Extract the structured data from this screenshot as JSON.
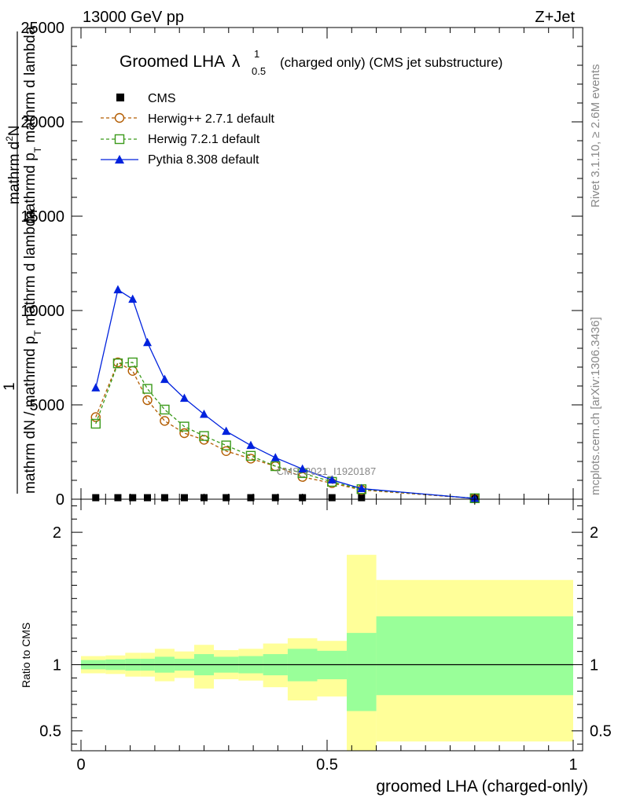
{
  "header": {
    "left": "13000 GeV pp",
    "right": "Z+Jet"
  },
  "side_labels": {
    "rivet": "Rivet 3.1.10, ≥ 2.6M events",
    "mcplots": "mcplots.cern.ch [arXiv:1306.3436]"
  },
  "chart_data": [
    {
      "type": "line",
      "title": {
        "main": "Groomed LHA",
        "lambda": "λ",
        "sup": "1",
        "sub": "0.5",
        "rest": "(charged only) (CMS jet substructure)"
      },
      "watermark": "CMS_2021_I1920187",
      "ylabel": "1 / mathrm dN / mathrmd p_T mathrmd p_T mathrm d lambda / mathrm d²N",
      "ylabel_parts": {
        "numerator": "1",
        "denominator": "mathrm dN / mathrmd p",
        "sub": "T",
        "tail": " mathrm d lambda",
        "upper_mid": "mathrmd p",
        "upper_tail": " mathrm d lambda",
        "top": "mathrm d",
        "top_sup": "2",
        "top_tail": "N"
      },
      "xlim": [
        0,
        1
      ],
      "ylim": [
        0,
        25000
      ],
      "yticks": [
        {
          "v": 0,
          "label": "0"
        },
        {
          "v": 5000,
          "label": "5000"
        },
        {
          "v": 10000,
          "label": "10000"
        },
        {
          "v": 15000,
          "label": "15000"
        },
        {
          "v": 20000,
          "label": "20000"
        },
        {
          "v": 25000,
          "label": "25000"
        }
      ],
      "x": [
        0.03,
        0.075,
        0.105,
        0.135,
        0.17,
        0.21,
        0.25,
        0.295,
        0.345,
        0.395,
        0.45,
        0.51,
        0.57,
        0.8
      ],
      "series": [
        {
          "name": "CMS",
          "marker": "square-filled",
          "color": "#000000",
          "values": [
            80,
            80,
            80,
            80,
            80,
            80,
            80,
            80,
            80,
            80,
            80,
            80,
            80,
            80
          ]
        },
        {
          "name": "Herwig++ 2.7.1 default",
          "marker": "circle-open",
          "color": "#b35c00",
          "dash": "4,3",
          "values": [
            4350,
            7250,
            6800,
            5250,
            4150,
            3500,
            3150,
            2550,
            2150,
            1750,
            1180,
            850,
            490,
            40
          ]
        },
        {
          "name": "Herwig 7.2.1 default",
          "marker": "square-open",
          "color": "#3a9a1a",
          "dash": "4,3",
          "values": [
            4000,
            7200,
            7250,
            5850,
            4750,
            3850,
            3350,
            2850,
            2300,
            1750,
            1380,
            920,
            530,
            50
          ]
        },
        {
          "name": "Pythia 8.308 default",
          "marker": "triangle-filled",
          "color": "#0022dd",
          "values": [
            5900,
            11100,
            10600,
            8300,
            6350,
            5350,
            4500,
            3600,
            2850,
            2200,
            1600,
            1020,
            560,
            40
          ]
        }
      ],
      "legend_position": "top-left"
    },
    {
      "type": "area",
      "ylabel": "Ratio to CMS",
      "xlabel": "groomed LHA (charged-only)",
      "xlim": [
        0,
        1
      ],
      "ylim": [
        0.35,
        2.25
      ],
      "yticks": [
        {
          "v": 0.5,
          "label": "0.5"
        },
        {
          "v": 1,
          "label": "1"
        },
        {
          "v": 2,
          "label": "2"
        }
      ],
      "xticks": [
        {
          "v": 0,
          "label": "0"
        },
        {
          "v": 0.5,
          "label": "0.5"
        },
        {
          "v": 1,
          "label": "1"
        }
      ],
      "bin_edges": [
        0,
        0.05,
        0.09,
        0.12,
        0.15,
        0.19,
        0.23,
        0.27,
        0.32,
        0.37,
        0.42,
        0.48,
        0.54,
        0.6,
        1.0
      ],
      "band_colors": {
        "stat": "#99ff99",
        "total": "#ffff99"
      },
      "bins_drawn": [
        {
          "lo": 0.0,
          "hi": 0.05,
          "stat": [
            0.965,
            1.035
          ],
          "total": [
            0.935,
            1.065
          ]
        },
        {
          "lo": 0.05,
          "hi": 0.09,
          "stat": [
            0.96,
            1.04
          ],
          "total": [
            0.93,
            1.07
          ]
        },
        {
          "lo": 0.09,
          "hi": 0.12,
          "stat": [
            0.955,
            1.045
          ],
          "total": [
            0.91,
            1.09
          ]
        },
        {
          "lo": 0.12,
          "hi": 0.15,
          "stat": [
            0.955,
            1.045
          ],
          "total": [
            0.91,
            1.09
          ]
        },
        {
          "lo": 0.15,
          "hi": 0.19,
          "stat": [
            0.94,
            1.06
          ],
          "total": [
            0.875,
            1.12
          ]
        },
        {
          "lo": 0.19,
          "hi": 0.23,
          "stat": [
            0.955,
            1.045
          ],
          "total": [
            0.9,
            1.1
          ]
        },
        {
          "lo": 0.23,
          "hi": 0.27,
          "stat": [
            0.92,
            1.08
          ],
          "total": [
            0.82,
            1.15
          ]
        },
        {
          "lo": 0.27,
          "hi": 0.32,
          "stat": [
            0.94,
            1.06
          ],
          "total": [
            0.89,
            1.11
          ]
        },
        {
          "lo": 0.32,
          "hi": 0.37,
          "stat": [
            0.935,
            1.065
          ],
          "total": [
            0.88,
            1.12
          ]
        },
        {
          "lo": 0.37,
          "hi": 0.42,
          "stat": [
            0.92,
            1.08
          ],
          "total": [
            0.83,
            1.16
          ]
        },
        {
          "lo": 0.42,
          "hi": 0.48,
          "stat": [
            0.875,
            1.12
          ],
          "total": [
            0.73,
            1.2
          ]
        },
        {
          "lo": 0.48,
          "hi": 0.54,
          "stat": [
            0.89,
            1.105
          ],
          "total": [
            0.76,
            1.18
          ]
        },
        {
          "lo": 0.54,
          "hi": 0.6,
          "stat": [
            0.65,
            1.24
          ],
          "total": [
            0.35,
            1.83
          ]
        },
        {
          "lo": 0.6,
          "hi": 1.0,
          "stat": [
            0.77,
            1.365
          ],
          "total": [
            0.42,
            1.64
          ]
        }
      ]
    }
  ]
}
